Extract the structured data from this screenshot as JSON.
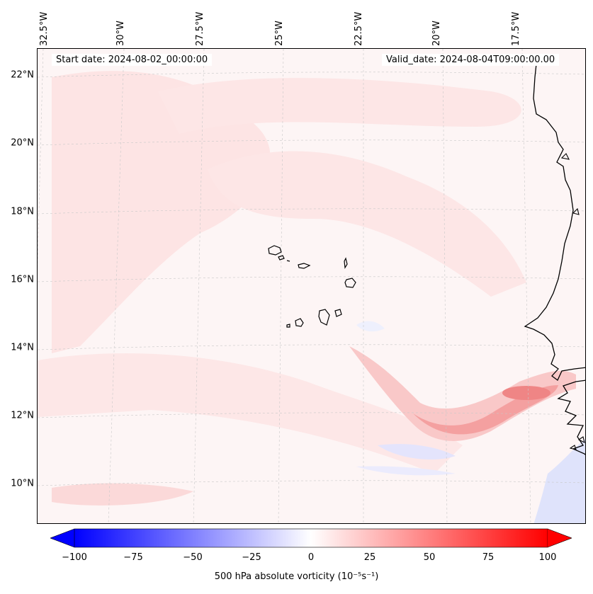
{
  "header": {
    "start_date": "Start date: 2024-08-02_00:00:00",
    "valid_date": "Valid_date: 2024-08-04T09:00:00.00"
  },
  "axes": {
    "lon_labels": [
      "32.5°W",
      "30°W",
      "27.5°W",
      "25°W",
      "22.5°W",
      "20°W",
      "17.5°W"
    ],
    "lat_labels": [
      "22°N",
      "20°N",
      "18°N",
      "16°N",
      "14°N",
      "12°N",
      "10°N"
    ]
  },
  "colorbar": {
    "ticks": [
      "−100",
      "−75",
      "−50",
      "−25",
      "0",
      "25",
      "50",
      "75",
      "100"
    ],
    "label": "500 hPa absolute vorticity (10⁻⁵s⁻¹)",
    "min_color": "#0000ff",
    "mid_color": "#ffffff",
    "max_color": "#ff0000"
  },
  "colors": {
    "coast": "#000000",
    "grid": "#bbbbbb"
  }
}
